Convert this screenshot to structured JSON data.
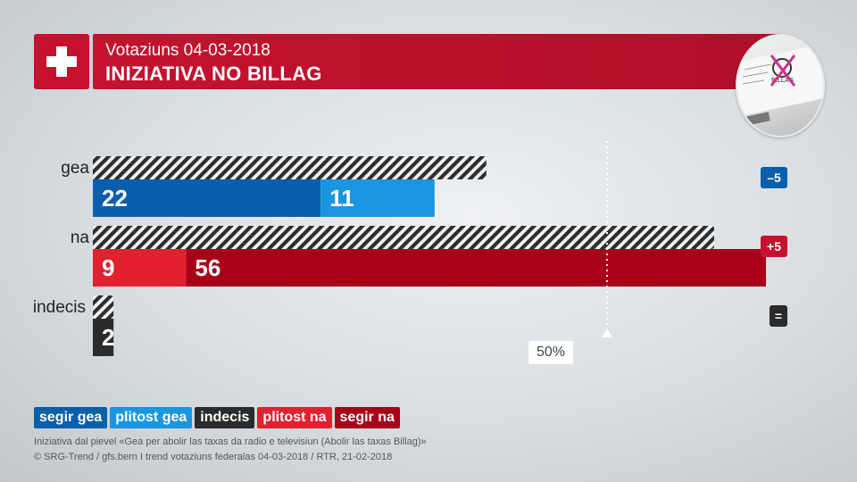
{
  "header": {
    "subtitle": "Votaziuns 04-03-2018",
    "title": "INIZIATIVA NO BILLAG"
  },
  "chart_data": {
    "type": "bar",
    "orientation": "horizontal",
    "title": "INIZIATIVA NO BILLAG",
    "subtitle": "Votaziuns 04-03-2018",
    "unit": "%",
    "xlim": [
      0,
      100
    ],
    "marker": {
      "value": 50,
      "label": "50%"
    },
    "categories": [
      "gea",
      "na",
      "indecis"
    ],
    "previous_totals": [
      38,
      60,
      2
    ],
    "series": [
      {
        "name": "segir gea",
        "color": "#0a5fad",
        "values": [
          22,
          0,
          0
        ]
      },
      {
        "name": "plitost gea",
        "color": "#1a96e0",
        "values": [
          11,
          0,
          0
        ]
      },
      {
        "name": "indecis",
        "color": "#2b2b2b",
        "values": [
          0,
          0,
          2
        ]
      },
      {
        "name": "plitost na",
        "color": "#e3202f",
        "values": [
          0,
          9,
          0
        ]
      },
      {
        "name": "segir na",
        "color": "#a8001a",
        "values": [
          0,
          56,
          0
        ]
      }
    ],
    "changes": [
      {
        "category": "gea",
        "label": "–5",
        "color": "#0a5fad"
      },
      {
        "category": "na",
        "label": "+5",
        "color": "#c8102e"
      },
      {
        "category": "indecis",
        "label": "=",
        "color": "#2b2b2b"
      }
    ]
  },
  "legend": [
    {
      "label": "segir gea",
      "color": "#0a5fad"
    },
    {
      "label": "plitost gea",
      "color": "#1a96e0"
    },
    {
      "label": "indecis",
      "color": "#2b2b2b"
    },
    {
      "label": "plitost na",
      "color": "#e3202f"
    },
    {
      "label": "segir na",
      "color": "#a8001a"
    }
  ],
  "footer": {
    "line1": "Iniziativa dal pievel «Gea per abolir las taxas da radio e televisiun (Abolir las taxas Billag)»",
    "line2": "© SRG-Trend / gfs.bern  I  trend votaziuns federalas 04-03-2018 / RTR, 21-02-2018"
  },
  "photo": {
    "logo_text": "BILLAG",
    "icon": "billag-logo-crossed-icon"
  }
}
